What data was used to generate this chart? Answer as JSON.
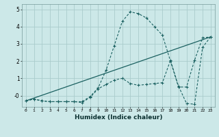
{
  "xlabel": "Humidex (Indice chaleur)",
  "background_color": "#cce8e8",
  "grid_color": "#aacccc",
  "line_color": "#1a6060",
  "xlim": [
    -0.5,
    23.5
  ],
  "ylim": [
    -0.65,
    5.3
  ],
  "ytick_values": [
    0,
    1,
    2,
    3,
    4,
    5
  ],
  "ytick_labels": [
    "-0",
    "1",
    "2",
    "3",
    "4",
    "5"
  ],
  "series1_x": [
    0,
    1,
    2,
    3,
    4,
    5,
    6,
    7,
    8,
    9,
    10,
    11,
    12,
    13,
    14,
    15,
    16,
    17,
    18,
    19,
    20,
    21,
    22,
    23
  ],
  "series1_y": [
    -0.3,
    -0.2,
    -0.3,
    -0.35,
    -0.35,
    -0.35,
    -0.35,
    -0.35,
    -0.05,
    0.45,
    1.5,
    2.9,
    4.3,
    4.85,
    4.75,
    4.5,
    4.0,
    3.5,
    2.0,
    0.5,
    0.5,
    2.05,
    3.35,
    3.4
  ],
  "series2_x": [
    0,
    1,
    2,
    3,
    4,
    5,
    6,
    7,
    8,
    9,
    10,
    11,
    12,
    13,
    14,
    15,
    16,
    17,
    18,
    19,
    20,
    21,
    22,
    23
  ],
  "series2_y": [
    -0.3,
    -0.2,
    -0.3,
    -0.35,
    -0.35,
    -0.35,
    -0.35,
    -0.4,
    -0.1,
    0.4,
    0.65,
    0.9,
    1.0,
    0.7,
    0.6,
    0.65,
    0.7,
    0.75,
    2.05,
    0.55,
    -0.45,
    -0.5,
    2.8,
    3.4
  ],
  "series3_x": [
    0,
    23
  ],
  "series3_y": [
    -0.3,
    3.4
  ]
}
